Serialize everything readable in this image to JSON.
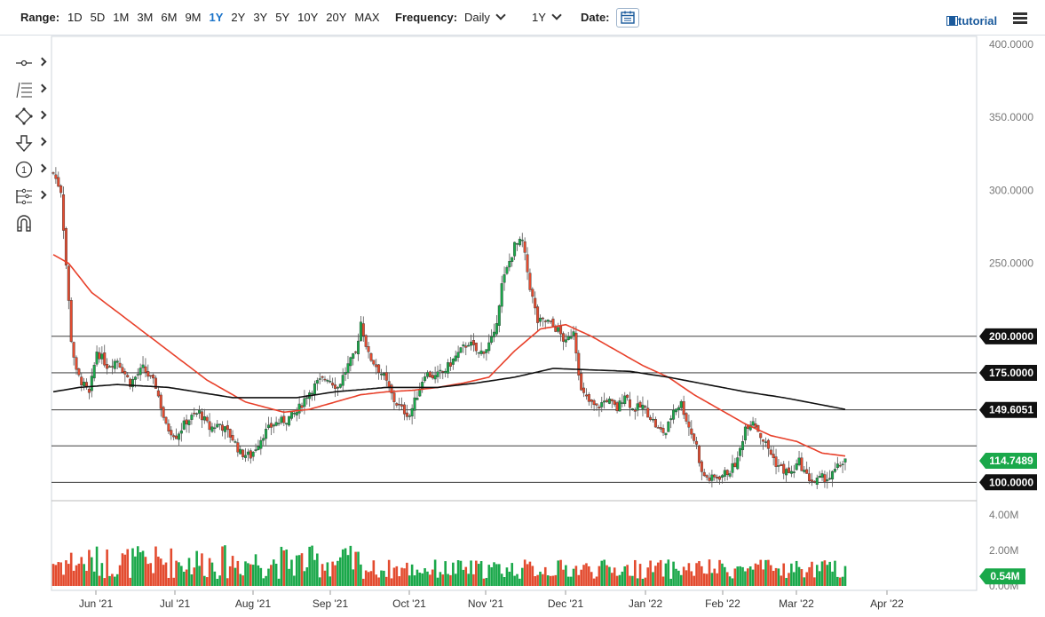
{
  "toolbar": {
    "range_label": "Range:",
    "ranges": [
      "1D",
      "5D",
      "1M",
      "3M",
      "6M",
      "9M",
      "1Y",
      "2Y",
      "3Y",
      "5Y",
      "10Y",
      "20Y",
      "MAX"
    ],
    "active_range": "1Y",
    "frequency_label": "Frequency:",
    "frequency_value": "Daily",
    "period_value": "1Y",
    "date_label": "Date:",
    "tutorial_label": "tutorial"
  },
  "tools": [
    {
      "icon": "crosshair-line-icon"
    },
    {
      "icon": "fibonacci-icon"
    },
    {
      "icon": "shape-icon"
    },
    {
      "icon": "arrow-down-icon"
    },
    {
      "icon": "number-marker-icon"
    },
    {
      "icon": "patterns-icon"
    },
    {
      "icon": "magnet-icon"
    }
  ],
  "colors": {
    "up": "#1aa84a",
    "down": "#e34b2f",
    "ma50": "#e8402a",
    "ma200": "#111111",
    "last_price_badge": "#1aa84a",
    "level_badge": "#111111"
  },
  "chart_data": {
    "type": "candlestick",
    "x_ticks": [
      "Jun '21",
      "Jul '21",
      "Aug '21",
      "Sep '21",
      "Oct '21",
      "Nov '21",
      "Dec '21",
      "Jan '22",
      "Feb '22",
      "Mar '22",
      "Apr '22"
    ],
    "y_ticks": [
      "400.0000",
      "350.0000",
      "300.0000",
      "250.0000",
      "200.0000",
      "175.0000",
      "149.6051",
      "100.0000"
    ],
    "ylim": [
      88,
      400
    ],
    "horizontal_levels": [
      200,
      175,
      149.6051,
      125,
      100
    ],
    "level_labels": [
      "200.0000",
      "175.0000",
      "149.6051",
      "100.0000"
    ],
    "last_price": 114.7489,
    "last_price_label": "114.7489",
    "volume_ticks": [
      "4.00M",
      "2.00M",
      "0.00M"
    ],
    "volume_ylim": [
      0,
      4
    ],
    "last_volume_label": "0.54M",
    "series": [
      {
        "name": "Price",
        "anchors": [
          [
            0,
            312
          ],
          [
            3,
            300
          ],
          [
            7,
            198
          ],
          [
            9,
            175
          ],
          [
            14,
            160
          ],
          [
            17,
            190
          ],
          [
            21,
            180
          ],
          [
            25,
            184
          ],
          [
            30,
            168
          ],
          [
            35,
            178
          ],
          [
            40,
            166
          ],
          [
            44,
            138
          ],
          [
            48,
            132
          ],
          [
            52,
            142
          ],
          [
            57,
            148
          ],
          [
            61,
            137
          ],
          [
            65,
            140
          ],
          [
            70,
            130
          ],
          [
            73,
            120
          ],
          [
            77,
            118
          ],
          [
            82,
            133
          ],
          [
            86,
            140
          ],
          [
            91,
            143
          ],
          [
            95,
            148
          ],
          [
            99,
            160
          ],
          [
            103,
            168
          ],
          [
            107,
            172
          ],
          [
            111,
            165
          ],
          [
            115,
            180
          ],
          [
            118,
            188
          ],
          [
            120,
            210
          ],
          [
            123,
            187
          ],
          [
            126,
            180
          ],
          [
            129,
            172
          ],
          [
            133,
            156
          ],
          [
            136,
            150
          ],
          [
            139,
            146
          ],
          [
            142,
            160
          ],
          [
            145,
            175
          ],
          [
            149,
            172
          ],
          [
            153,
            177
          ],
          [
            157,
            186
          ],
          [
            162,
            196
          ],
          [
            166,
            188
          ],
          [
            169,
            192
          ],
          [
            172,
            200
          ],
          [
            175,
            235
          ],
          [
            180,
            262
          ],
          [
            183,
            265
          ],
          [
            186,
            234
          ],
          [
            189,
            210
          ],
          [
            193,
            210
          ],
          [
            197,
            204
          ],
          [
            200,
            195
          ],
          [
            203,
            205
          ],
          [
            206,
            162
          ],
          [
            209,
            155
          ],
          [
            212,
            151
          ],
          [
            216,
            157
          ],
          [
            220,
            150
          ],
          [
            223,
            161
          ],
          [
            226,
            150
          ],
          [
            230,
            152
          ],
          [
            233,
            145
          ],
          [
            236,
            136
          ],
          [
            239,
            134
          ],
          [
            242,
            150
          ],
          [
            245,
            154
          ],
          [
            248,
            138
          ],
          [
            251,
            125
          ],
          [
            253,
            106
          ],
          [
            256,
            102
          ],
          [
            260,
            104
          ],
          [
            264,
            108
          ],
          [
            267,
            115
          ],
          [
            270,
            138
          ],
          [
            273,
            143
          ],
          [
            276,
            132
          ],
          [
            279,
            123
          ],
          [
            282,
            113
          ],
          [
            285,
            108
          ],
          [
            288,
            106
          ],
          [
            291,
            114
          ],
          [
            294,
            104
          ],
          [
            297,
            100
          ],
          [
            300,
            103
          ],
          [
            303,
            103
          ],
          [
            306,
            110
          ],
          [
            309,
            116
          ]
        ]
      },
      {
        "name": "50-day MA",
        "anchors": [
          [
            0,
            256
          ],
          [
            6,
            250
          ],
          [
            15,
            230
          ],
          [
            30,
            210
          ],
          [
            45,
            190
          ],
          [
            60,
            170
          ],
          [
            75,
            155
          ],
          [
            90,
            148
          ],
          [
            100,
            150
          ],
          [
            110,
            155
          ],
          [
            120,
            160
          ],
          [
            130,
            162
          ],
          [
            140,
            163
          ],
          [
            150,
            165
          ],
          [
            160,
            168
          ],
          [
            170,
            172
          ],
          [
            180,
            190
          ],
          [
            190,
            205
          ],
          [
            200,
            208
          ],
          [
            210,
            200
          ],
          [
            220,
            190
          ],
          [
            230,
            180
          ],
          [
            240,
            172
          ],
          [
            250,
            160
          ],
          [
            260,
            150
          ],
          [
            270,
            140
          ],
          [
            280,
            132
          ],
          [
            290,
            128
          ],
          [
            300,
            120
          ],
          [
            309,
            118
          ]
        ]
      },
      {
        "name": "200-day MA",
        "anchors": [
          [
            0,
            162
          ],
          [
            10,
            165
          ],
          [
            25,
            167
          ],
          [
            45,
            165
          ],
          [
            70,
            158
          ],
          [
            95,
            158
          ],
          [
            110,
            162
          ],
          [
            130,
            165
          ],
          [
            150,
            165
          ],
          [
            165,
            168
          ],
          [
            180,
            172
          ],
          [
            195,
            178
          ],
          [
            210,
            177
          ],
          [
            225,
            176
          ],
          [
            240,
            172
          ],
          [
            255,
            167
          ],
          [
            270,
            162
          ],
          [
            285,
            158
          ],
          [
            300,
            153
          ],
          [
            309,
            150
          ]
        ]
      }
    ]
  }
}
